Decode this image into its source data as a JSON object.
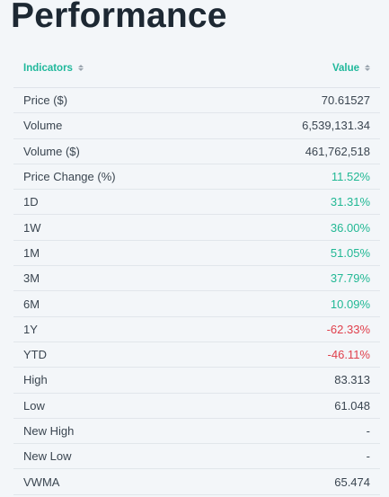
{
  "page": {
    "title": "Performance"
  },
  "colors": {
    "accent": "#1fb89b",
    "positive": "#21b894",
    "negative": "#e0404c",
    "text": "#3a4550",
    "background": "#f3f6f9"
  },
  "table": {
    "headers": {
      "indicator": "Indicators",
      "value": "Value",
      "sort_icon": "sort-icon"
    },
    "rows": [
      {
        "label": "Price ($)",
        "value": "70.61527",
        "tone": "neutral"
      },
      {
        "label": "Volume",
        "value": "6,539,131.34",
        "tone": "neutral"
      },
      {
        "label": "Volume ($)",
        "value": "461,762,518",
        "tone": "neutral"
      },
      {
        "label": "Price Change (%)",
        "value": "11.52%",
        "tone": "positive"
      },
      {
        "label": "1D",
        "value": "31.31%",
        "tone": "positive"
      },
      {
        "label": "1W",
        "value": "36.00%",
        "tone": "positive"
      },
      {
        "label": "1M",
        "value": "51.05%",
        "tone": "positive"
      },
      {
        "label": "3M",
        "value": "37.79%",
        "tone": "positive"
      },
      {
        "label": "6M",
        "value": "10.09%",
        "tone": "positive"
      },
      {
        "label": "1Y",
        "value": "-62.33%",
        "tone": "negative"
      },
      {
        "label": "YTD",
        "value": "-46.11%",
        "tone": "negative"
      },
      {
        "label": "High",
        "value": "83.313",
        "tone": "neutral"
      },
      {
        "label": "Low",
        "value": "61.048",
        "tone": "neutral"
      },
      {
        "label": "New High",
        "value": "-",
        "tone": "neutral"
      },
      {
        "label": "New Low",
        "value": "-",
        "tone": "neutral"
      },
      {
        "label": "VWMA",
        "value": "65.474",
        "tone": "neutral"
      }
    ]
  }
}
